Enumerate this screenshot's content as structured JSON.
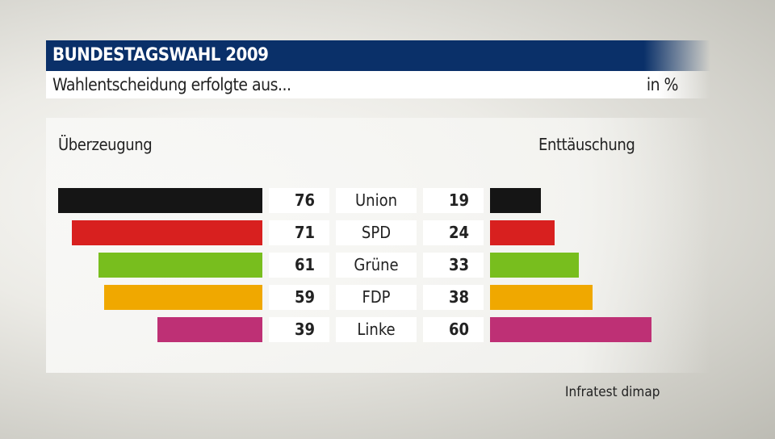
{
  "header": {
    "title": "BUNDESTAGSWAHL 2009",
    "subtitle": "Wahlentscheidung erfolgte aus...",
    "unit": "in %"
  },
  "source": "Infratest dimap",
  "chart_data": {
    "type": "bar",
    "categories": [
      "Union",
      "SPD",
      "Grüne",
      "FDP",
      "Linke"
    ],
    "colors": [
      "#151515",
      "#d8201f",
      "#78be1e",
      "#f0a800",
      "#be3075"
    ],
    "series": [
      {
        "name": "Überzeugung",
        "values": [
          76,
          71,
          61,
          59,
          39
        ],
        "direction": "left"
      },
      {
        "name": "Enttäuschung",
        "values": [
          19,
          24,
          33,
          38,
          60
        ],
        "direction": "right"
      }
    ],
    "xlim": [
      0,
      100
    ]
  }
}
